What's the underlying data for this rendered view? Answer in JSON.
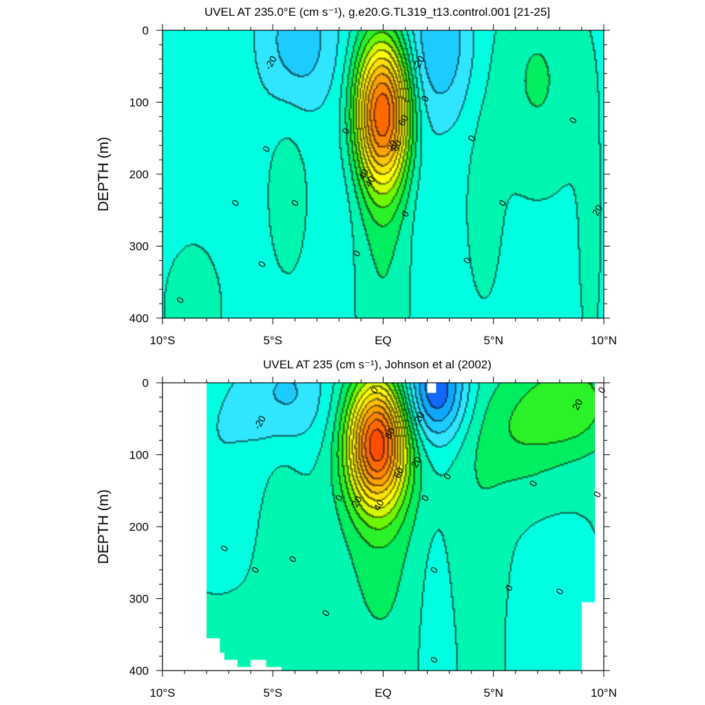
{
  "chart_data": [
    {
      "type": "heatmap",
      "title": "UVEL AT 235.0°E (cm s⁻¹), g.e20.G.TL319_t13.control.001 [21-25]",
      "xlabel": "",
      "ylabel": "DEPTH (m)",
      "xlim": [
        -10,
        10
      ],
      "ylim": [
        400,
        0
      ],
      "x_ticks": [
        "10°S",
        "5°S",
        "EQ",
        "5°N",
        "10°N"
      ],
      "y_ticks": [
        "0",
        "100",
        "200",
        "300",
        "400"
      ],
      "contour_interval": 10,
      "contour_labels": [
        "-20",
        "-20",
        "0",
        "0",
        "0",
        "0",
        "0",
        "0",
        "0",
        "0",
        "0",
        "0",
        "0",
        "0",
        "0",
        "20",
        "20",
        "40",
        "40",
        "60",
        "80"
      ],
      "features": [
        {
          "name": "EUC core",
          "lat": 0.0,
          "depth": 115,
          "u": 100
        },
        {
          "name": "SEC south",
          "lat": -3.8,
          "depth": 20,
          "u": -25
        },
        {
          "name": "SEC north",
          "lat": 2.5,
          "depth": 20,
          "u": -28
        },
        {
          "name": "NECC",
          "lat": 7.0,
          "depth": 60,
          "u": 12
        },
        {
          "name": "SSCC",
          "lat": -4.3,
          "depth": 220,
          "u": 6
        },
        {
          "name": "deep eastward south",
          "lat": -8.5,
          "depth": 380,
          "u": 5
        }
      ]
    },
    {
      "type": "heatmap",
      "title": "UVEL AT 235 (cm s⁻¹), Johnson et al (2002)",
      "xlabel": "",
      "ylabel": "DEPTH (m)",
      "xlim": [
        -10,
        10
      ],
      "ylim": [
        400,
        0
      ],
      "x_ticks": [
        "10°S",
        "5°S",
        "EQ",
        "5°N",
        "10°N"
      ],
      "y_ticks": [
        "0",
        "100",
        "200",
        "300",
        "400"
      ],
      "contour_interval": 10,
      "contour_labels": [
        "-20",
        "-20",
        "0",
        "0",
        "0",
        "0",
        "0",
        "0",
        "0",
        "0",
        "0",
        "0",
        "0",
        "0",
        "0",
        "0",
        "0",
        "20",
        "20",
        "20",
        "40",
        "60",
        "80"
      ],
      "features": [
        {
          "name": "EUC core",
          "lat": -0.3,
          "depth": 85,
          "u": 105
        },
        {
          "name": "SEC north",
          "lat": 2.4,
          "depth": 15,
          "u": -45
        },
        {
          "name": "SEC south",
          "lat": -4.3,
          "depth": 30,
          "u": -18
        },
        {
          "name": "NECC",
          "lat": 8.6,
          "depth": 30,
          "u": 28
        },
        {
          "name": "SSCC",
          "lat": -4.6,
          "depth": 190,
          "u": 6
        }
      ]
    }
  ],
  "colors": {
    "frame": "#000000",
    "land_missing": "#ffffff",
    "palette": [
      "#0000e0",
      "#0a2af5",
      "#1468ff",
      "#10a8ff",
      "#1ccbff",
      "#30e6ff",
      "#00ffe0",
      "#00f5b0",
      "#00ee5f",
      "#2bf228",
      "#6ef700",
      "#d8fa00",
      "#ffff00",
      "#ffe100",
      "#ffc300",
      "#ffa300",
      "#ff8600",
      "#ff6a00",
      "#ff4e00",
      "#f93000",
      "#ee1200",
      "#e00000"
    ]
  }
}
